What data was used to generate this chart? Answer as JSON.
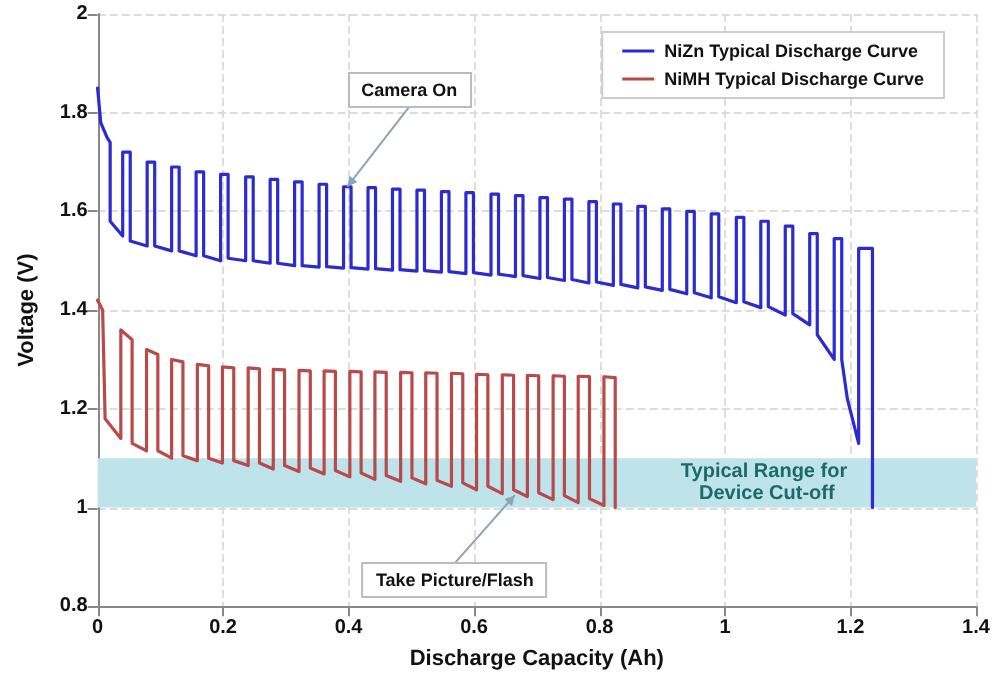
{
  "chart_data": {
    "type": "line",
    "xlabel": "Discharge Capacity (Ah)",
    "ylabel": "Voltage (V)",
    "xlim": [
      0,
      1.4
    ],
    "xticks": [
      0,
      0.2,
      0.4,
      0.6,
      0.8,
      1,
      1.2,
      1.4
    ],
    "ylim": [
      0.8,
      2
    ],
    "yticks": [
      0.8,
      1,
      1.2,
      1.4,
      1.6,
      1.8,
      2
    ],
    "grid": true,
    "legend": "top right",
    "marker": "none",
    "line_style": "solid",
    "series": [
      {
        "name": "NiZn Typical Discharge Curve",
        "color": "#2b2bd0",
        "x": [
          0,
          0.005,
          0.015,
          0.02,
          0.02,
          0.04,
          0.04,
          0.052,
          0.052,
          0.079,
          0.079,
          0.091,
          0.091,
          0.118,
          0.118,
          0.13,
          0.13,
          0.157,
          0.157,
          0.169,
          0.169,
          0.196,
          0.196,
          0.208,
          0.208,
          0.236,
          0.236,
          0.248,
          0.248,
          0.275,
          0.275,
          0.287,
          0.287,
          0.314,
          0.314,
          0.326,
          0.326,
          0.353,
          0.353,
          0.365,
          0.365,
          0.392,
          0.392,
          0.404,
          0.404,
          0.431,
          0.431,
          0.443,
          0.443,
          0.47,
          0.47,
          0.482,
          0.482,
          0.509,
          0.509,
          0.521,
          0.521,
          0.548,
          0.548,
          0.56,
          0.56,
          0.587,
          0.587,
          0.599,
          0.599,
          0.627,
          0.627,
          0.639,
          0.639,
          0.666,
          0.666,
          0.678,
          0.678,
          0.705,
          0.705,
          0.717,
          0.717,
          0.744,
          0.744,
          0.756,
          0.756,
          0.783,
          0.783,
          0.795,
          0.795,
          0.822,
          0.822,
          0.834,
          0.834,
          0.861,
          0.861,
          0.873,
          0.873,
          0.9,
          0.9,
          0.912,
          0.912,
          0.939,
          0.939,
          0.951,
          0.951,
          0.978,
          0.978,
          0.99,
          0.99,
          1.018,
          1.018,
          1.03,
          1.03,
          1.057,
          1.057,
          1.069,
          1.069,
          1.096,
          1.096,
          1.108,
          1.108,
          1.135,
          1.135,
          1.147,
          1.147,
          1.174,
          1.174,
          1.186,
          1.186,
          1.195,
          1.213,
          1.213,
          1.235,
          1.235
        ],
        "values": [
          1.85,
          1.78,
          1.75,
          1.74,
          1.58,
          1.55,
          1.72,
          1.72,
          1.54,
          1.53,
          1.7,
          1.7,
          1.53,
          1.52,
          1.69,
          1.69,
          1.52,
          1.51,
          1.68,
          1.68,
          1.51,
          1.5,
          1.675,
          1.675,
          1.505,
          1.5,
          1.67,
          1.67,
          1.5,
          1.495,
          1.665,
          1.665,
          1.495,
          1.49,
          1.66,
          1.66,
          1.49,
          1.487,
          1.655,
          1.655,
          1.488,
          1.485,
          1.65,
          1.65,
          1.486,
          1.483,
          1.648,
          1.648,
          1.484,
          1.481,
          1.645,
          1.645,
          1.482,
          1.479,
          1.643,
          1.643,
          1.48,
          1.477,
          1.64,
          1.64,
          1.478,
          1.474,
          1.638,
          1.638,
          1.476,
          1.471,
          1.635,
          1.635,
          1.473,
          1.468,
          1.632,
          1.632,
          1.47,
          1.464,
          1.628,
          1.628,
          1.466,
          1.46,
          1.625,
          1.625,
          1.462,
          1.455,
          1.62,
          1.62,
          1.457,
          1.45,
          1.615,
          1.615,
          1.452,
          1.445,
          1.61,
          1.61,
          1.447,
          1.44,
          1.605,
          1.605,
          1.442,
          1.433,
          1.6,
          1.6,
          1.435,
          1.425,
          1.595,
          1.595,
          1.427,
          1.415,
          1.588,
          1.588,
          1.417,
          1.405,
          1.58,
          1.58,
          1.407,
          1.39,
          1.57,
          1.57,
          1.393,
          1.37,
          1.555,
          1.555,
          1.35,
          1.3,
          1.545,
          1.545,
          1.3,
          1.22,
          1.13,
          1.525,
          1.525,
          1.0
        ]
      },
      {
        "name": "NiMH Typical Discharge Curve",
        "color": "#b84a4a",
        "x": [
          0,
          0.008,
          0.012,
          0.037,
          0.037,
          0.055,
          0.055,
          0.078,
          0.078,
          0.096,
          0.096,
          0.118,
          0.118,
          0.136,
          0.136,
          0.159,
          0.159,
          0.177,
          0.177,
          0.199,
          0.199,
          0.217,
          0.217,
          0.24,
          0.24,
          0.258,
          0.258,
          0.28,
          0.28,
          0.298,
          0.298,
          0.321,
          0.321,
          0.339,
          0.339,
          0.361,
          0.361,
          0.379,
          0.379,
          0.402,
          0.402,
          0.42,
          0.42,
          0.442,
          0.442,
          0.46,
          0.46,
          0.483,
          0.483,
          0.501,
          0.501,
          0.523,
          0.523,
          0.541,
          0.541,
          0.564,
          0.564,
          0.582,
          0.582,
          0.604,
          0.604,
          0.622,
          0.622,
          0.645,
          0.645,
          0.663,
          0.663,
          0.685,
          0.685,
          0.703,
          0.703,
          0.726,
          0.726,
          0.744,
          0.744,
          0.766,
          0.766,
          0.784,
          0.784,
          0.807,
          0.807,
          0.825,
          0.825
        ],
        "values": [
          1.42,
          1.4,
          1.18,
          1.14,
          1.36,
          1.34,
          1.13,
          1.115,
          1.32,
          1.31,
          1.115,
          1.1,
          1.3,
          1.295,
          1.105,
          1.095,
          1.29,
          1.287,
          1.1,
          1.09,
          1.285,
          1.283,
          1.095,
          1.085,
          1.283,
          1.281,
          1.09,
          1.078,
          1.28,
          1.279,
          1.085,
          1.073,
          1.278,
          1.277,
          1.08,
          1.068,
          1.277,
          1.276,
          1.075,
          1.062,
          1.276,
          1.275,
          1.07,
          1.057,
          1.275,
          1.274,
          1.065,
          1.053,
          1.274,
          1.273,
          1.06,
          1.048,
          1.273,
          1.272,
          1.055,
          1.043,
          1.272,
          1.271,
          1.05,
          1.036,
          1.27,
          1.269,
          1.043,
          1.028,
          1.269,
          1.268,
          1.036,
          1.022,
          1.268,
          1.267,
          1.03,
          1.016,
          1.267,
          1.266,
          1.024,
          1.01,
          1.266,
          1.265,
          1.018,
          1.004,
          1.265,
          1.263,
          1.0
        ]
      }
    ],
    "bands": [
      {
        "axis": "y",
        "from": 1,
        "to": 1.1,
        "label": "Typical Range for Device Cut-off",
        "color": "#bfe3ea"
      }
    ],
    "annotations": [
      {
        "text": "Camera On",
        "x": 0.398,
        "y": 1.65
      },
      {
        "text": "Take Picture/Flash",
        "x": 0.665,
        "y": 1.025
      }
    ]
  }
}
